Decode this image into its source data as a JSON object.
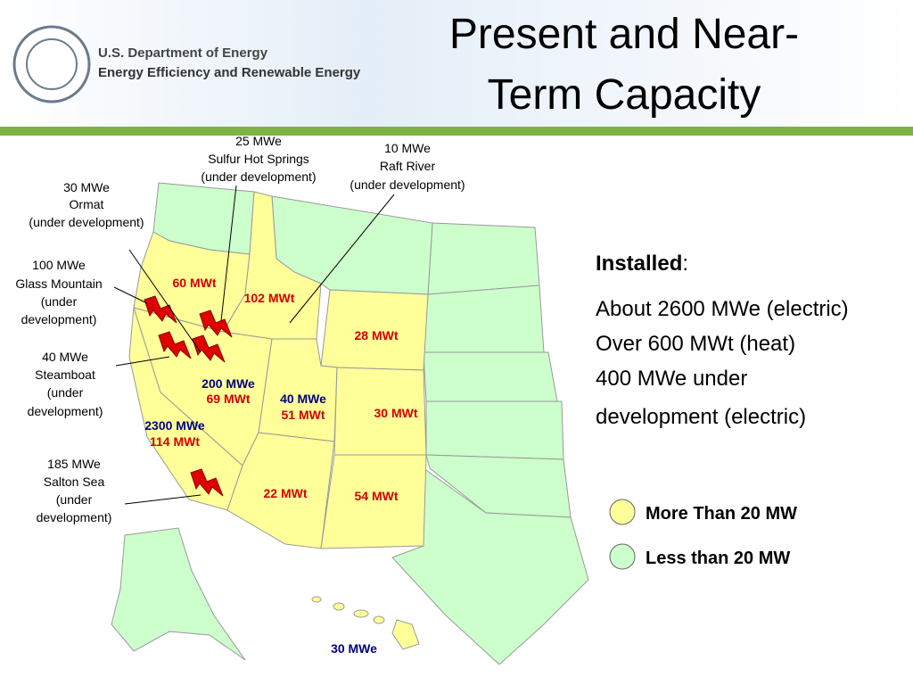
{
  "header": {
    "org": [
      "U.S. Department of Energy",
      "Energy Efficiency and Renewable Energy"
    ],
    "title": [
      "Present and Near-",
      "Term Capacity"
    ]
  },
  "callouts": [
    [
      "25 MWe",
      "Sulfur Hot Springs",
      "(under development)"
    ],
    [
      "10 MWe",
      "Raft River",
      "(under development)"
    ],
    [
      "30 MWe",
      "Ormat",
      "(under development)"
    ],
    [
      "100 MWe",
      "Glass Mountain",
      "(under",
      "development)"
    ],
    [
      "40 MWe",
      "Steamboat",
      "(under",
      "development)"
    ],
    [
      "185 MWe",
      "Salton Sea",
      "(under",
      "development)"
    ]
  ],
  "map_labels": [
    "60 MWt",
    "102 MWt",
    "28 MWt",
    "200 MWe",
    "69 MWt",
    "40 MWe",
    "51 MWt",
    "30 MWt",
    "2300 MWe",
    "114 MWt",
    "22 MWt",
    "54 MWt",
    "30 MWe"
  ],
  "installed": {
    "heading": "Installed",
    "punct": ":",
    "lines": [
      "About 2600 MWe (electric)",
      "Over 600 MWt (heat)",
      "400 MWe under",
      "development (electric)"
    ]
  },
  "legend": [
    {
      "label": "More Than 20 MW",
      "color": "#ffff99"
    },
    {
      "label": "Less than 20 MW",
      "color": "#ccffcc"
    }
  ]
}
